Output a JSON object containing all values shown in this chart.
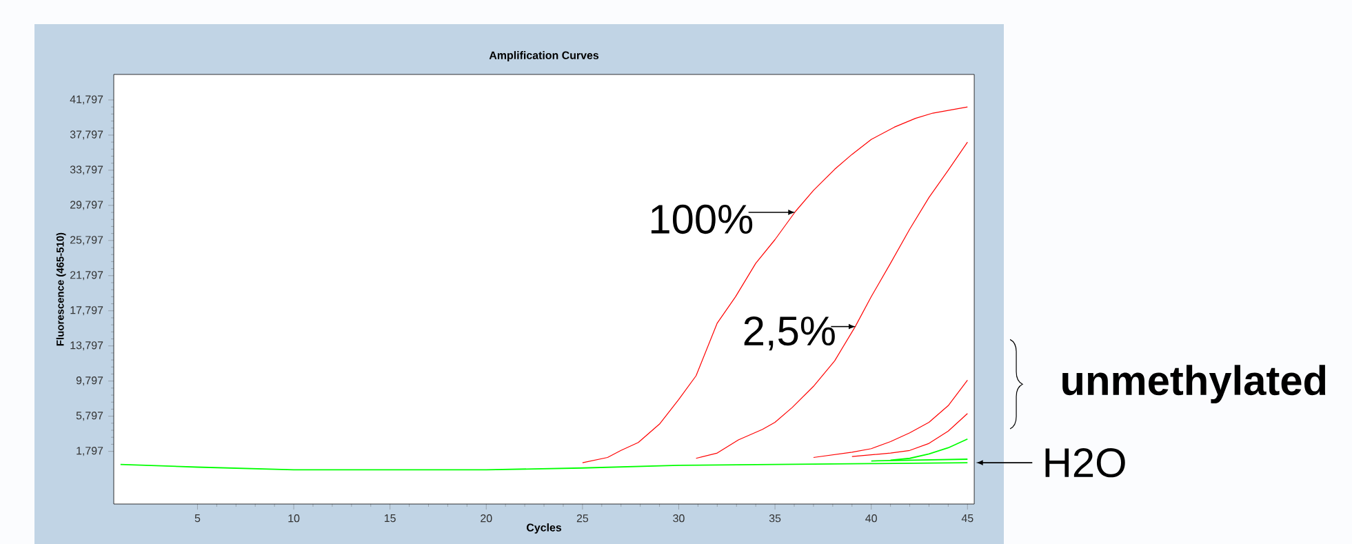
{
  "chart_data": {
    "type": "line",
    "title": "Amplification Curves",
    "xlabel": "Cycles",
    "ylabel": "Fluorescence (465-510)",
    "xlim": [
      0.65,
      45.35
    ],
    "ylim": [
      -4200,
      44700
    ],
    "xticks": [
      5,
      10,
      15,
      20,
      25,
      30,
      35,
      40,
      45
    ],
    "yticks": [
      {
        "value": 1797,
        "label": "1,797"
      },
      {
        "value": 5797,
        "label": "5,797"
      },
      {
        "value": 9797,
        "label": "9,797"
      },
      {
        "value": 13797,
        "label": "13,797"
      },
      {
        "value": 17797,
        "label": "17,797"
      },
      {
        "value": 21797,
        "label": "21,797"
      },
      {
        "value": 25797,
        "label": "25,797"
      },
      {
        "value": 29797,
        "label": "29,797"
      },
      {
        "value": 33797,
        "label": "33,797"
      },
      {
        "value": 37797,
        "label": "37,797"
      },
      {
        "value": 41797,
        "label": "41,797"
      }
    ],
    "marker": "none",
    "series": [
      {
        "color": "#ff0000",
        "x": [
          25,
          26.3,
          27,
          27.9,
          29,
          30,
          30.9,
          32,
          32.95,
          34,
          35,
          36.06,
          37,
          38.1,
          39,
          40,
          41.2,
          42.3,
          43.2,
          45
        ],
        "values": [
          500,
          1100,
          1900,
          2800,
          4900,
          7700,
          10400,
          16400,
          19400,
          23200,
          25900,
          29100,
          31500,
          33900,
          35600,
          37300,
          38700,
          39700,
          40300,
          41000
        ]
      },
      {
        "color": "#ff0000",
        "x": [
          30.9,
          32,
          33.1,
          34.35,
          35,
          35.9,
          37,
          38.1,
          39.17,
          40,
          41,
          42,
          43,
          44,
          45
        ],
        "values": [
          1000,
          1600,
          3100,
          4300,
          5100,
          6800,
          9200,
          12100,
          16000,
          19400,
          23200,
          27100,
          30700,
          33800,
          37000
        ]
      },
      {
        "color": "#ff0000",
        "x": [
          37,
          39,
          40,
          41,
          42,
          43,
          44,
          45
        ],
        "values": [
          1100,
          1700,
          2100,
          2900,
          3900,
          5100,
          7000,
          9900
        ]
      },
      {
        "color": "#ff0000",
        "x": [
          39,
          40,
          41,
          42,
          43,
          44,
          45
        ],
        "values": [
          1200,
          1400,
          1600,
          1900,
          2700,
          4100,
          6100
        ]
      },
      {
        "color": "#00ff00",
        "x": [
          41,
          42,
          43,
          44,
          45
        ],
        "values": [
          800,
          1000,
          1500,
          2200,
          3200
        ]
      },
      {
        "color": "#00ff00",
        "x": [
          40,
          45
        ],
        "values": [
          700,
          900
        ]
      },
      {
        "color": "#00ff00",
        "x": [
          1,
          5,
          10,
          15,
          20,
          25,
          30,
          35,
          40,
          45
        ],
        "values": [
          300,
          0,
          -300,
          -300,
          -300,
          -100,
          200,
          300,
          400,
          500
        ]
      }
    ],
    "annotations": [
      {
        "text": "100%",
        "x": 36.06,
        "y": 29000
      },
      {
        "text": "2,5%",
        "x": 39.2,
        "y": 16000
      },
      "unmethylated",
      {
        "text": "H2O",
        "x": 45,
        "y": 500
      }
    ]
  }
}
